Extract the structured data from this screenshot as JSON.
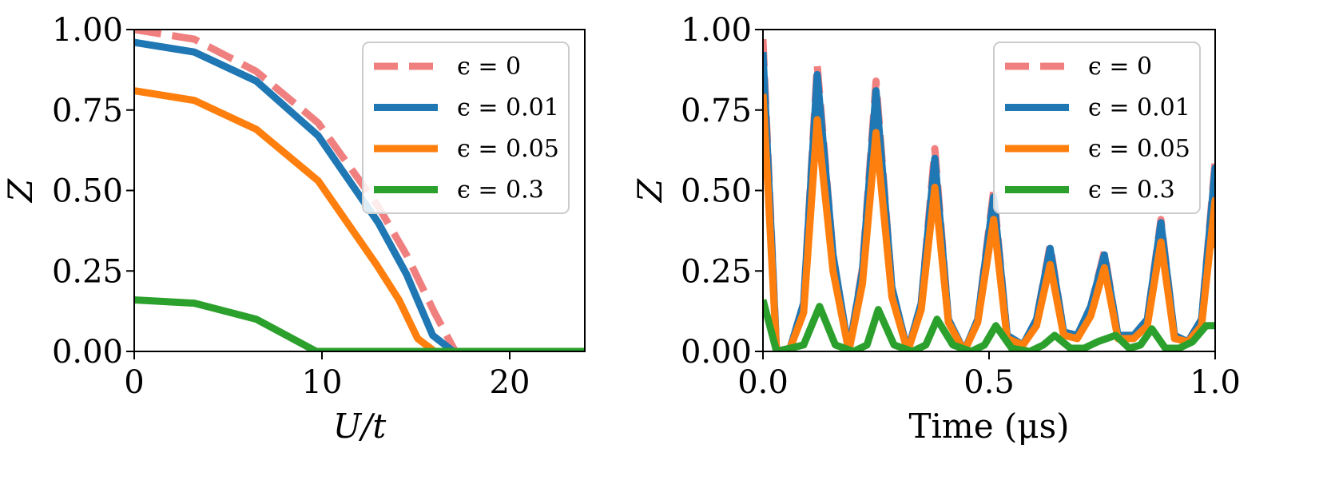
{
  "chart_data": [
    {
      "type": "line",
      "title": "",
      "xlabel": "U/t",
      "ylabel": "Z",
      "xlim": [
        0,
        24
      ],
      "ylim": [
        0,
        1
      ],
      "xticks": [
        0,
        10,
        20
      ],
      "xtick_labels": [
        "0",
        "10",
        "20"
      ],
      "yticks": [
        0,
        0.25,
        0.5,
        0.75,
        1.0
      ],
      "ytick_labels": [
        "0.00",
        "0.25",
        "0.50",
        "0.75",
        "1.00"
      ],
      "legend_position": "top-right",
      "series": [
        {
          "name": "ϵ = 0",
          "color": "#f08080",
          "dash": "dashed",
          "x": [
            0,
            3.2,
            6.5,
            9.8,
            13.0,
            14.5,
            16.0,
            17.1,
            24
          ],
          "y": [
            1.0,
            0.97,
            0.87,
            0.71,
            0.45,
            0.3,
            0.12,
            0.0,
            0.0
          ]
        },
        {
          "name": "ϵ = 0.01",
          "color": "#1f77b4",
          "dash": "solid",
          "x": [
            0,
            3.2,
            6.5,
            9.8,
            13.0,
            14.5,
            15.9,
            17.0,
            24
          ],
          "y": [
            0.96,
            0.93,
            0.84,
            0.67,
            0.4,
            0.24,
            0.05,
            0.0,
            0.0
          ]
        },
        {
          "name": "ϵ = 0.05",
          "color": "#ff7f0e",
          "dash": "solid",
          "x": [
            0,
            3.2,
            6.5,
            9.8,
            12.9,
            14.1,
            15.1,
            16.0,
            24
          ],
          "y": [
            0.81,
            0.78,
            0.69,
            0.53,
            0.27,
            0.16,
            0.04,
            0.0,
            0.0
          ]
        },
        {
          "name": "ϵ = 0.3",
          "color": "#2ca02c",
          "dash": "solid",
          "x": [
            0,
            3.2,
            6.5,
            9.7,
            24
          ],
          "y": [
            0.16,
            0.15,
            0.1,
            0.0,
            0.0
          ]
        }
      ]
    },
    {
      "type": "line",
      "title": "",
      "xlabel": "Time (μs)",
      "ylabel": "Z",
      "xlim": [
        0,
        1
      ],
      "ylim": [
        0,
        1
      ],
      "xticks": [
        0,
        0.5,
        1.0
      ],
      "xtick_labels": [
        "0.0",
        "0.5",
        "1.0"
      ],
      "yticks": [
        0,
        0.25,
        0.5,
        0.75,
        1.0
      ],
      "ytick_labels": [
        "0.00",
        "0.25",
        "0.50",
        "0.75",
        "1.00"
      ],
      "legend_position": "top-right",
      "series": [
        {
          "name": "ϵ = 0",
          "color": "#f08080",
          "dash": "dashed",
          "x": [
            0,
            0.03,
            0.06,
            0.09,
            0.12,
            0.155,
            0.19,
            0.22,
            0.25,
            0.285,
            0.32,
            0.35,
            0.38,
            0.41,
            0.445,
            0.475,
            0.51,
            0.54,
            0.575,
            0.605,
            0.635,
            0.665,
            0.695,
            0.725,
            0.755,
            0.785,
            0.82,
            0.85,
            0.88,
            0.91,
            0.94,
            0.97,
            1.0
          ],
          "y": [
            0.97,
            0.0,
            0.01,
            0.15,
            0.89,
            0.3,
            0.0,
            0.26,
            0.84,
            0.2,
            0.0,
            0.15,
            0.63,
            0.1,
            0.0,
            0.1,
            0.5,
            0.05,
            0.02,
            0.1,
            0.33,
            0.06,
            0.05,
            0.14,
            0.31,
            0.05,
            0.05,
            0.1,
            0.41,
            0.05,
            0.03,
            0.1,
            0.59
          ]
        },
        {
          "name": "ϵ = 0.01",
          "color": "#1f77b4",
          "dash": "solid",
          "x": [
            0,
            0.03,
            0.06,
            0.09,
            0.12,
            0.155,
            0.19,
            0.22,
            0.25,
            0.285,
            0.32,
            0.35,
            0.38,
            0.41,
            0.445,
            0.475,
            0.51,
            0.54,
            0.575,
            0.605,
            0.635,
            0.665,
            0.695,
            0.725,
            0.755,
            0.785,
            0.82,
            0.85,
            0.88,
            0.91,
            0.94,
            0.97,
            1.0,
            1.0
          ],
          "y": [
            0.93,
            0.0,
            0.01,
            0.15,
            0.86,
            0.3,
            0.0,
            0.25,
            0.81,
            0.2,
            0.0,
            0.15,
            0.6,
            0.1,
            0.0,
            0.1,
            0.48,
            0.05,
            0.02,
            0.1,
            0.32,
            0.06,
            0.05,
            0.14,
            0.3,
            0.05,
            0.05,
            0.1,
            0.4,
            0.05,
            0.03,
            0.1,
            0.57,
            0.45
          ]
        },
        {
          "name": "ϵ = 0.05",
          "color": "#ff7f0e",
          "dash": "solid",
          "x": [
            0,
            0.03,
            0.06,
            0.09,
            0.12,
            0.155,
            0.19,
            0.22,
            0.25,
            0.285,
            0.32,
            0.35,
            0.38,
            0.41,
            0.445,
            0.475,
            0.51,
            0.54,
            0.575,
            0.605,
            0.635,
            0.665,
            0.695,
            0.725,
            0.755,
            0.785,
            0.82,
            0.85,
            0.88,
            0.91,
            0.94,
            0.97,
            1.0,
            1.0
          ],
          "y": [
            0.8,
            0.0,
            0.01,
            0.12,
            0.72,
            0.25,
            0.0,
            0.21,
            0.68,
            0.17,
            0.0,
            0.13,
            0.51,
            0.09,
            0.0,
            0.09,
            0.41,
            0.04,
            0.02,
            0.08,
            0.27,
            0.05,
            0.04,
            0.11,
            0.26,
            0.04,
            0.04,
            0.08,
            0.34,
            0.04,
            0.03,
            0.08,
            0.47,
            0.32
          ]
        },
        {
          "name": "ϵ = 0.3",
          "color": "#2ca02c",
          "dash": "solid",
          "x": [
            0,
            0.03,
            0.06,
            0.09,
            0.125,
            0.16,
            0.2,
            0.23,
            0.255,
            0.29,
            0.33,
            0.36,
            0.385,
            0.42,
            0.46,
            0.49,
            0.515,
            0.55,
            0.59,
            0.62,
            0.645,
            0.68,
            0.71,
            0.74,
            0.78,
            0.81,
            0.835,
            0.86,
            0.89,
            0.92,
            0.95,
            0.98,
            1.0
          ],
          "y": [
            0.16,
            0.0,
            0.01,
            0.02,
            0.14,
            0.02,
            0.0,
            0.02,
            0.13,
            0.02,
            0.0,
            0.02,
            0.1,
            0.02,
            0.0,
            0.02,
            0.08,
            0.01,
            0.0,
            0.02,
            0.05,
            0.01,
            0.01,
            0.03,
            0.05,
            0.01,
            0.02,
            0.07,
            0.01,
            0.01,
            0.03,
            0.08,
            0.08
          ]
        }
      ]
    }
  ]
}
